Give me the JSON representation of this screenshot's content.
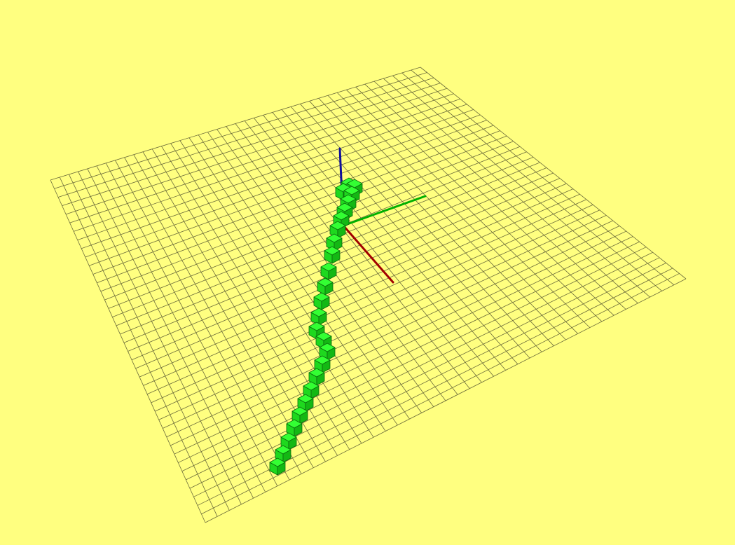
{
  "viewport": {
    "background_color": "#ffff80"
  },
  "grid": {
    "divisions": 40,
    "line_color": "#6b6b3a"
  },
  "axes": [
    {
      "name": "x",
      "color": "#a00000"
    },
    {
      "name": "y",
      "color": "#00b000"
    },
    {
      "name": "z",
      "color": "#10109a"
    }
  ],
  "cube_path": {
    "cube_count": 26,
    "face_colors": {
      "top": "#33ff33",
      "left": "#1ed81e",
      "right": "#14b814"
    },
    "edge_color": "#0a6a0a"
  }
}
